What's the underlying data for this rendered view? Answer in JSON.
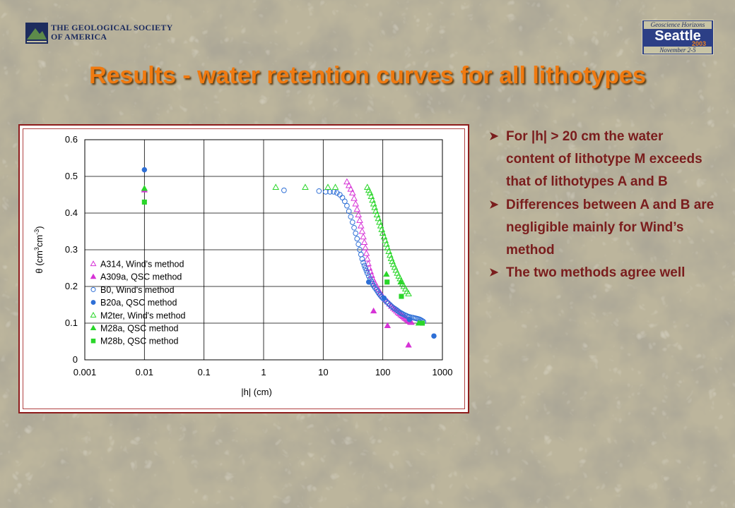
{
  "header": {
    "logo_line1": "THE GEOLOGICAL SOCIETY",
    "logo_line2": "OF AMERICA",
    "badge_top": "Geoscience Horizons",
    "badge_city": "Seattle",
    "badge_year": "2003",
    "badge_dates": "November 2-5"
  },
  "title": "Results - water retention curves for all lithotypes",
  "bullets": [
    "For |h| > 20 cm the water content of lithotype M exceeds that of lithotypes A and B",
    "Differences between A and B are negligible mainly for Wind’s method",
    "The two methods agree well"
  ],
  "colors": {
    "title": "#f07a10",
    "bullet_text": "#7a1d1d",
    "frame": "#8e1c1c",
    "series_A": "#d633d6",
    "series_B": "#2e6fd6",
    "series_M": "#2ad62a"
  },
  "chart_data": {
    "type": "scatter",
    "xscale": "log",
    "xlabel": "|h| (cm)",
    "ylabel_parts": [
      "θ (cm",
      "3",
      "cm",
      "-3",
      ")"
    ],
    "xlim": [
      0.001,
      1000
    ],
    "ylim": [
      0,
      0.6
    ],
    "xticks": [
      "0.001",
      "0.01",
      "0.1",
      "1",
      "10",
      "100",
      "1000"
    ],
    "yticks": [
      "0",
      "0.1",
      "0.2",
      "0.3",
      "0.4",
      "0.5",
      "0.6"
    ],
    "grid": true,
    "legend_position": "bottom-left",
    "series": [
      {
        "name": "A314, Wind's method",
        "marker": "triangle-open",
        "color": "#d633d6",
        "x": [
          25,
          27,
          29,
          31,
          33,
          35,
          37,
          39,
          41,
          43,
          45,
          47,
          49,
          51,
          53,
          55,
          57,
          59,
          62,
          65,
          68,
          72,
          76,
          80,
          85,
          90,
          95,
          100,
          110,
          120,
          130,
          140,
          150,
          160,
          170,
          180,
          190,
          200,
          210,
          220,
          230,
          240,
          250,
          260,
          270,
          280,
          290,
          300
        ],
        "y": [
          0.485,
          0.475,
          0.465,
          0.455,
          0.44,
          0.425,
          0.41,
          0.395,
          0.38,
          0.365,
          0.35,
          0.335,
          0.32,
          0.305,
          0.29,
          0.275,
          0.262,
          0.25,
          0.24,
          0.23,
          0.22,
          0.212,
          0.205,
          0.198,
          0.19,
          0.183,
          0.177,
          0.172,
          0.165,
          0.158,
          0.152,
          0.146,
          0.141,
          0.137,
          0.133,
          0.129,
          0.126,
          0.123,
          0.12,
          0.118,
          0.115,
          0.113,
          0.111,
          0.109,
          0.107,
          0.105,
          0.103,
          0.102
        ]
      },
      {
        "name": "A309a, QSC method",
        "marker": "triangle-filled",
        "color": "#d633d6",
        "x": [
          0.01,
          70,
          120,
          270
        ],
        "y": [
          0.463,
          0.133,
          0.093,
          0.04
        ]
      },
      {
        "name": "B0, Wind's method",
        "marker": "circle-open",
        "color": "#2e6fd6",
        "x": [
          2.2,
          8.5,
          11,
          13,
          15,
          17,
          19,
          21,
          23,
          25,
          27,
          29,
          31,
          33,
          35,
          37,
          39,
          41,
          43,
          45,
          47,
          49,
          51,
          53,
          55,
          58,
          61,
          64,
          67,
          70,
          74,
          78,
          82,
          86,
          90,
          95,
          100,
          108,
          116,
          124,
          132,
          140,
          150,
          160,
          170,
          180,
          190,
          200,
          210,
          220,
          235,
          250,
          265,
          280,
          300,
          320,
          340,
          360,
          380,
          400,
          420,
          440,
          460,
          480
        ],
        "y": [
          0.462,
          0.46,
          0.458,
          0.458,
          0.458,
          0.455,
          0.45,
          0.442,
          0.432,
          0.42,
          0.405,
          0.39,
          0.375,
          0.36,
          0.345,
          0.33,
          0.315,
          0.3,
          0.287,
          0.275,
          0.265,
          0.257,
          0.25,
          0.243,
          0.236,
          0.228,
          0.221,
          0.214,
          0.208,
          0.202,
          0.196,
          0.191,
          0.186,
          0.181,
          0.177,
          0.172,
          0.168,
          0.163,
          0.158,
          0.154,
          0.15,
          0.146,
          0.142,
          0.139,
          0.136,
          0.133,
          0.13,
          0.128,
          0.126,
          0.124,
          0.122,
          0.12,
          0.118,
          0.117,
          0.116,
          0.115,
          0.114,
          0.113,
          0.112,
          0.111,
          0.11,
          0.108,
          0.106,
          0.104
        ]
      },
      {
        "name": "B20a, QSC method",
        "marker": "circle-filled",
        "color": "#2e6fd6",
        "x": [
          0.01,
          58,
          105,
          280,
          720
        ],
        "y": [
          0.518,
          0.212,
          0.168,
          0.11,
          0.065
        ]
      },
      {
        "name": "M2ter, Wind's method",
        "marker": "triangle-open",
        "color": "#2ad62a",
        "x": [
          1.6,
          5,
          12,
          16,
          55,
          58,
          61,
          64,
          67,
          70,
          73,
          76,
          80,
          84,
          88,
          92,
          96,
          100,
          105,
          110,
          115,
          120,
          126,
          132,
          138,
          144,
          150,
          158,
          166,
          175,
          185,
          195,
          205,
          215,
          225,
          240,
          255,
          270
        ],
        "y": [
          0.47,
          0.47,
          0.47,
          0.47,
          0.47,
          0.462,
          0.455,
          0.445,
          0.435,
          0.425,
          0.415,
          0.405,
          0.395,
          0.385,
          0.375,
          0.365,
          0.355,
          0.345,
          0.335,
          0.325,
          0.315,
          0.305,
          0.295,
          0.285,
          0.276,
          0.268,
          0.26,
          0.252,
          0.244,
          0.236,
          0.228,
          0.221,
          0.214,
          0.207,
          0.2,
          0.193,
          0.186,
          0.18
        ]
      },
      {
        "name": "M28a, QSC method",
        "marker": "triangle-filled",
        "color": "#2ad62a",
        "x": [
          0.01,
          115,
          200,
          400
        ],
        "y": [
          0.467,
          0.233,
          0.212,
          0.1
        ]
      },
      {
        "name": "M28b, QSC method",
        "marker": "square-filled",
        "color": "#2ad62a",
        "x": [
          0.01,
          118,
          205,
          460
        ],
        "y": [
          0.43,
          0.212,
          0.173,
          0.1
        ]
      }
    ]
  }
}
